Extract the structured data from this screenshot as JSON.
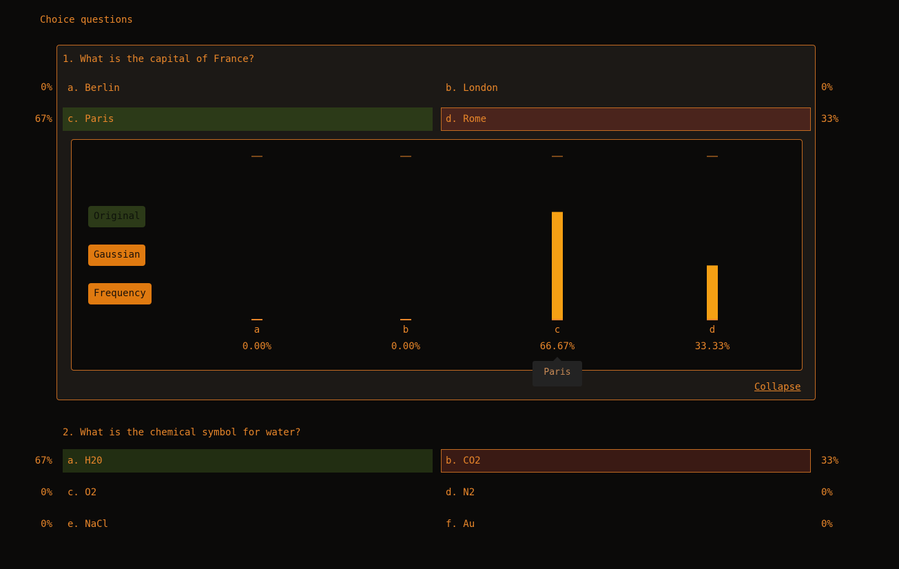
{
  "heading": "Choice questions",
  "q1": {
    "title": "1. What is the capital of France?",
    "options": [
      {
        "label": "a. Berlin",
        "pct": "0%"
      },
      {
        "label": "b. London",
        "pct": "0%"
      },
      {
        "label": "c. Paris",
        "pct": "67%"
      },
      {
        "label": "d. Rome",
        "pct": "33%"
      }
    ],
    "legend": {
      "original": "Original",
      "gaussian": "Gaussian",
      "frequency": "Frequency"
    },
    "tooltip": "Paris",
    "collapse": "Collapse"
  },
  "q2": {
    "title": "2. What is the chemical symbol for water?",
    "options": [
      {
        "label": "a. H20",
        "pct": "67%"
      },
      {
        "label": "b. CO2",
        "pct": "33%"
      },
      {
        "label": "c. O2",
        "pct": "0%"
      },
      {
        "label": "d. N2",
        "pct": "0%"
      },
      {
        "label": "e. NaCl",
        "pct": "0%"
      },
      {
        "label": "f. Au",
        "pct": "0%"
      }
    ]
  },
  "chart_data": {
    "type": "bar",
    "categories": [
      "a",
      "b",
      "c",
      "d"
    ],
    "values": [
      0,
      0,
      66.67,
      33.33
    ],
    "value_labels": [
      "0.00%",
      "0.00%",
      "66.67%",
      "33.33%"
    ],
    "ylim": [
      0,
      100
    ],
    "bar_color": "#f5a014",
    "accent_color": "#e8862a"
  }
}
